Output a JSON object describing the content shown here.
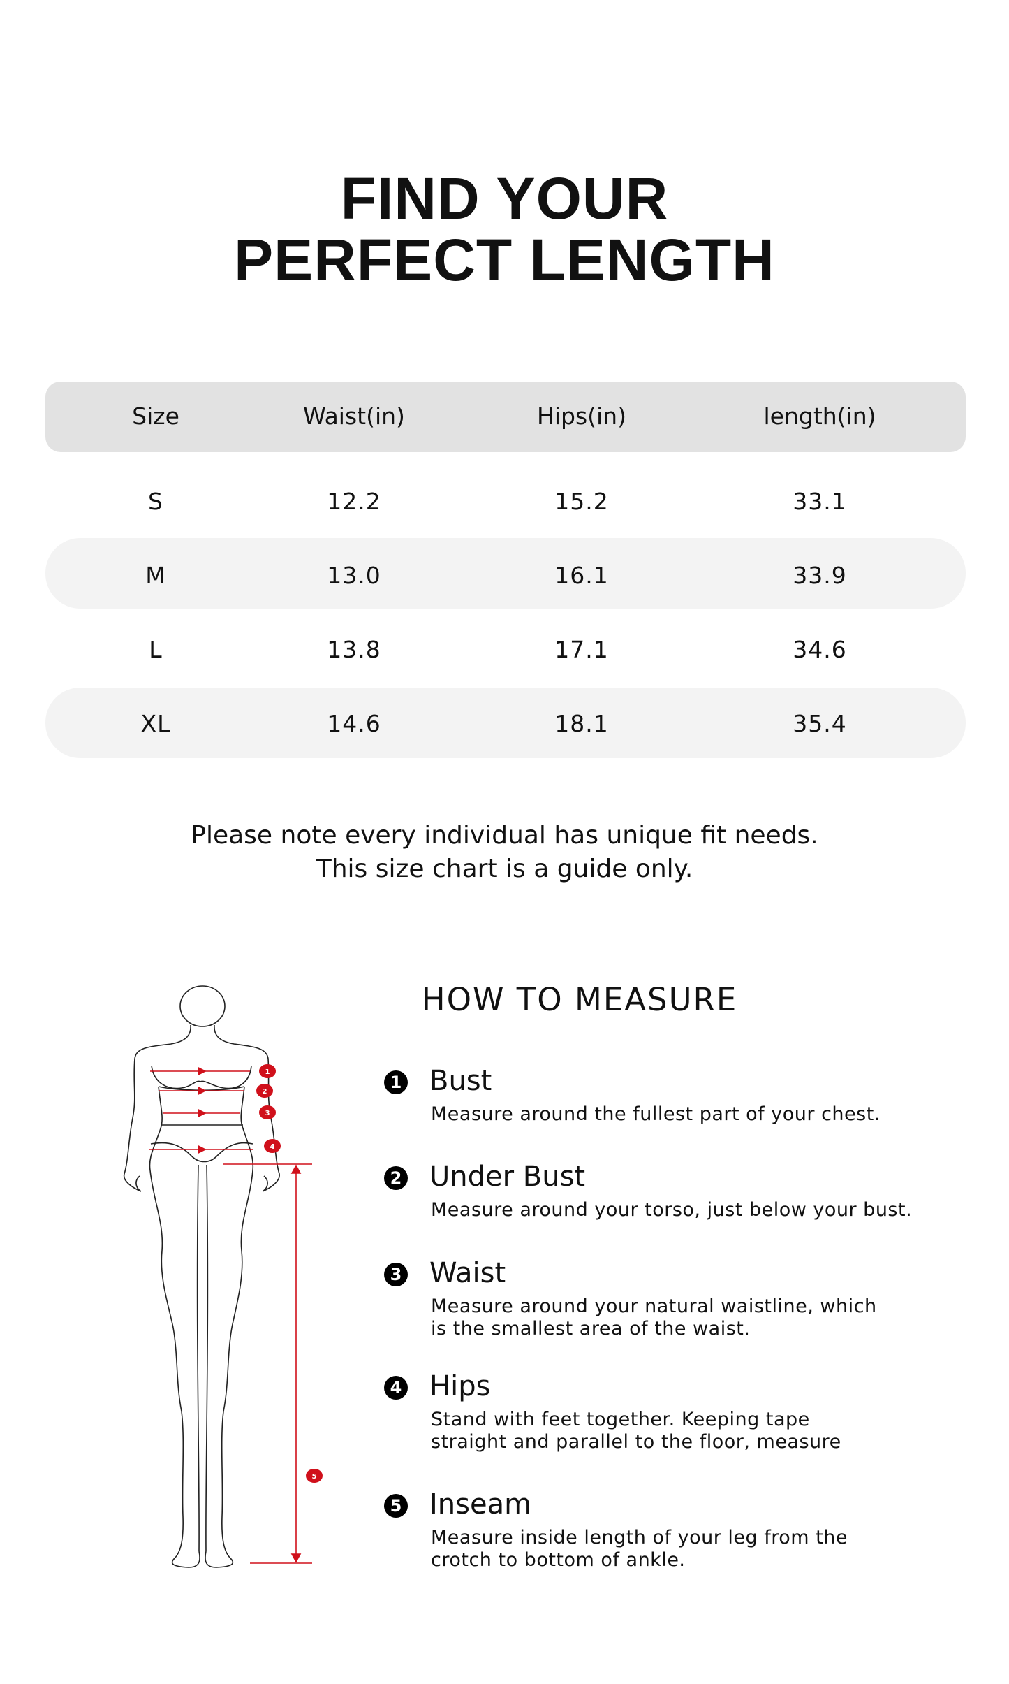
{
  "title": {
    "line1": "FIND YOUR",
    "line2": "PERFECT LENGTH"
  },
  "table": {
    "headers": [
      "Size",
      "Waist(in)",
      "Hips(in)",
      "length(in)"
    ],
    "rows": [
      [
        "S",
        "12.2",
        "15.2",
        "33.1"
      ],
      [
        "M",
        "13.0",
        "16.1",
        "33.9"
      ],
      [
        "L",
        "13.8",
        "17.1",
        "34.6"
      ],
      [
        "XL",
        "14.6",
        "18.1",
        "35.4"
      ]
    ]
  },
  "note": {
    "line1": "Please note every individual has unique fit needs.",
    "line2": "This size chart is a guide only."
  },
  "how_to_measure": {
    "heading": "HOW TO MEASURE",
    "items": [
      {
        "num": "1",
        "title": "Bust",
        "desc": [
          "Measure around the fullest part of your chest."
        ]
      },
      {
        "num": "2",
        "title": "Under Bust",
        "desc": [
          "Measure around your torso, just below your bust."
        ]
      },
      {
        "num": "3",
        "title": "Waist",
        "desc": [
          "Measure around your natural waistline, which",
          "is the smallest area of the waist."
        ]
      },
      {
        "num": "4",
        "title": "Hips",
        "desc": [
          "Stand with feet together. Keeping tape",
          "straight and parallel to the floor, measure"
        ]
      },
      {
        "num": "5",
        "title": "Inseam",
        "desc": [
          "Measure inside length of your leg from the",
          "crotch to bottom of ankle."
        ]
      }
    ]
  },
  "figure": {
    "markers": [
      "1",
      "2",
      "3",
      "4",
      "5"
    ],
    "accent_color": "#d0101b"
  }
}
